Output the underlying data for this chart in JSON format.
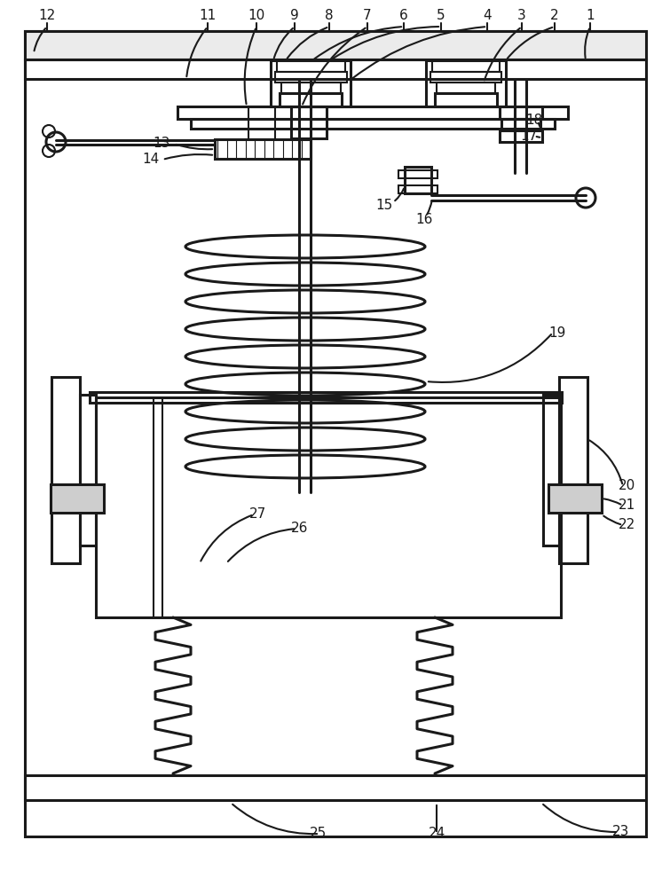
{
  "bg": "#ffffff",
  "lc": "#1a1a1a",
  "lw": 1.5,
  "lw2": 2.2,
  "figsize": [
    7.55,
    10.0
  ],
  "dpi": 100
}
